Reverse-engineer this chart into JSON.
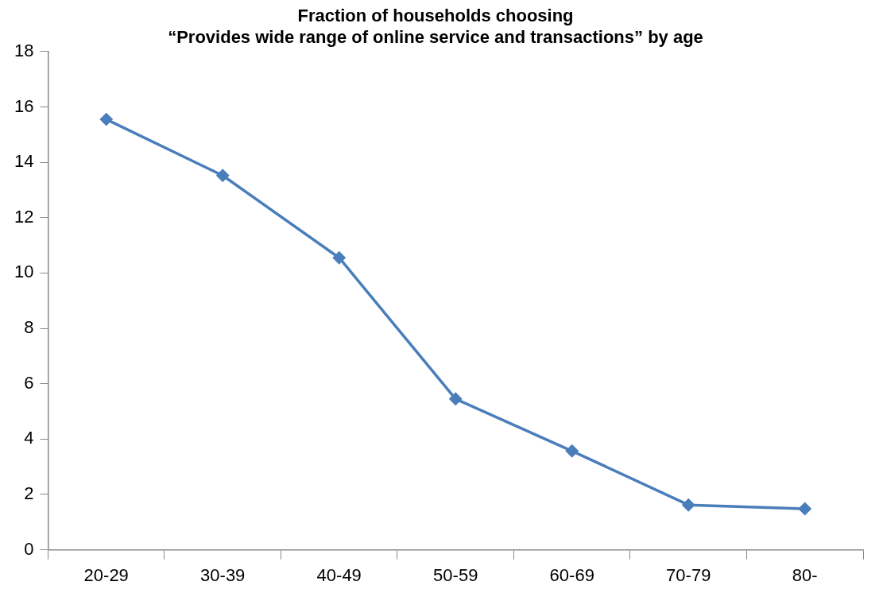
{
  "chart_data": {
    "type": "line",
    "title": "Fraction of households choosing\n“Provides wide range of online service and transactions” by age",
    "categories": [
      "20-29",
      "30-39",
      "40-49",
      "50-59",
      "60-69",
      "70-79",
      "80-"
    ],
    "series": [
      {
        "color": "#4a7ebb",
        "values": [
          15.55,
          13.52,
          10.55,
          5.45,
          3.57,
          1.62,
          1.48
        ]
      }
    ],
    "ylim": [
      0,
      18
    ],
    "yticks": [
      0,
      2,
      4,
      6,
      8,
      10,
      12,
      14,
      16,
      18
    ],
    "grid": false,
    "legend": false,
    "marker": "diamond",
    "line_style": "solid"
  }
}
